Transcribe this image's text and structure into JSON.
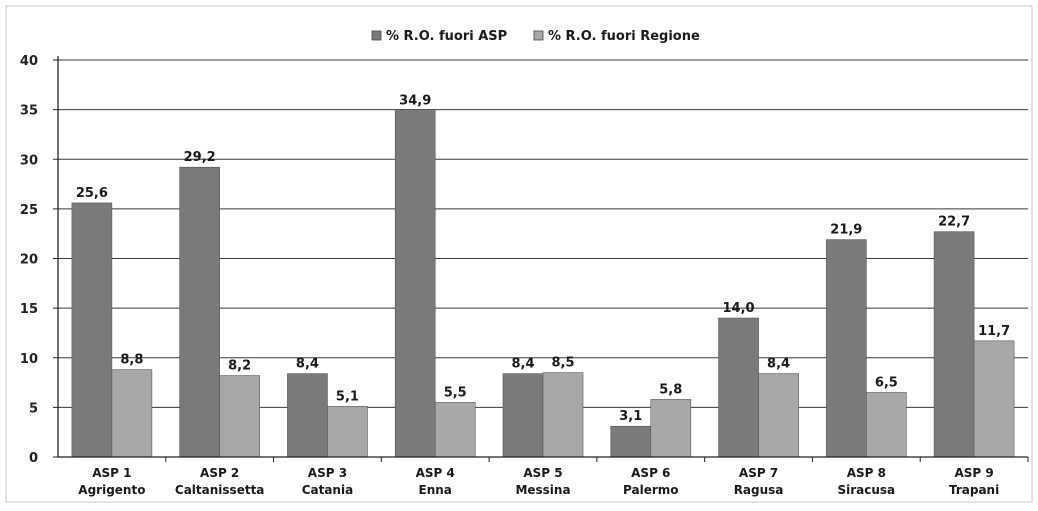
{
  "chart_data": {
    "type": "bar",
    "categories": [
      [
        "ASP 1",
        "Agrigento"
      ],
      [
        "ASP 2",
        "Caltanissetta"
      ],
      [
        "ASP 3",
        "Catania"
      ],
      [
        "ASP 4",
        "Enna"
      ],
      [
        "ASP 5",
        "Messina"
      ],
      [
        "ASP 6",
        "Palermo"
      ],
      [
        "ASP 7",
        "Ragusa"
      ],
      [
        "ASP 8",
        "Siracusa"
      ],
      [
        "ASP 9",
        "Trapani"
      ]
    ],
    "series": [
      {
        "name": "% R.O. fuori ASP",
        "values": [
          25.6,
          29.2,
          8.4,
          34.9,
          8.4,
          3.1,
          14.0,
          21.9,
          22.7
        ],
        "labels": [
          "25,6",
          "29,2",
          "8,4",
          "34,9",
          "8,4",
          "3,1",
          "14,0",
          "21,9",
          "22,7"
        ],
        "color": "#7a7a7a"
      },
      {
        "name": "% R.O. fuori Regione",
        "values": [
          8.8,
          8.2,
          5.1,
          5.5,
          8.5,
          5.8,
          8.4,
          6.5,
          11.7
        ],
        "labels": [
          "8,8",
          "8,2",
          "5,1",
          "5,5",
          "8,5",
          "5,8",
          "8,4",
          "6,5",
          "11,7"
        ],
        "color": "#a8a8a8"
      }
    ],
    "y_ticks": [
      "0",
      "5",
      "10",
      "15",
      "20",
      "25",
      "30",
      "35",
      "40"
    ],
    "ylim": [
      0,
      40
    ],
    "grid": true,
    "legend_position": "top"
  }
}
